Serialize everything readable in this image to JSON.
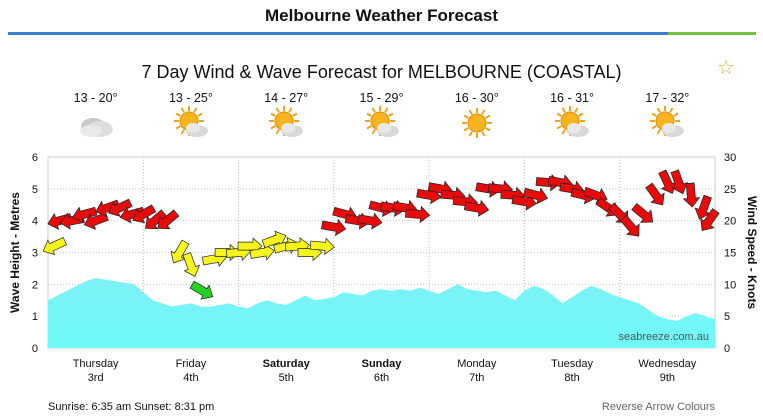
{
  "header": {
    "title": "Melbourne Weather Forecast"
  },
  "chart_data": {
    "type": "area",
    "title": "7 Day Wind & Wave Forecast for MELBOURNE (COASTAL)",
    "ylabel_left": "Wave Height - Metres",
    "ylabel_right": "Wind Speed - Knots",
    "ylim_left": [
      0,
      6
    ],
    "ylim_right": [
      0,
      30
    ],
    "yticks_left": [
      "0",
      "1",
      "2",
      "3",
      "4",
      "5",
      "6"
    ],
    "yticks_right": [
      "0",
      "5",
      "10",
      "15",
      "20",
      "25",
      "30"
    ],
    "grid": "dotted",
    "watermark": "seabreeze.com.au",
    "days": [
      {
        "name": "Thursday",
        "date": "3rd",
        "bold": false,
        "temp": "13 - 20°",
        "icon": "cloudy"
      },
      {
        "name": "Friday",
        "date": "4th",
        "bold": false,
        "temp": "13 - 25°",
        "icon": "partly-cloudy"
      },
      {
        "name": "Saturday",
        "date": "5th",
        "bold": true,
        "temp": "14 - 27°",
        "icon": "partly-cloudy"
      },
      {
        "name": "Sunday",
        "date": "6th",
        "bold": true,
        "temp": "15 - 29°",
        "icon": "partly-cloudy"
      },
      {
        "name": "Monday",
        "date": "7th",
        "bold": false,
        "temp": "16 - 30°",
        "icon": "sunny"
      },
      {
        "name": "Tuesday",
        "date": "8th",
        "bold": false,
        "temp": "16 - 31°",
        "icon": "partly-cloudy"
      },
      {
        "name": "Wednesday",
        "date": "9th",
        "bold": false,
        "temp": "17 - 32°",
        "icon": "partly-cloudy"
      }
    ],
    "wave_height_series": {
      "name": "Wave Height",
      "x": [
        0,
        0.1,
        0.2,
        0.3,
        0.4,
        0.5,
        0.6,
        0.7,
        0.8,
        0.9,
        1.0,
        1.1,
        1.2,
        1.3,
        1.4,
        1.5,
        1.6,
        1.7,
        1.8,
        1.9,
        2.0,
        2.1,
        2.2,
        2.3,
        2.4,
        2.5,
        2.6,
        2.7,
        2.8,
        2.9,
        3.0,
        3.1,
        3.2,
        3.3,
        3.4,
        3.5,
        3.6,
        3.7,
        3.8,
        3.9,
        4.0,
        4.1,
        4.2,
        4.3,
        4.4,
        4.5,
        4.6,
        4.7,
        4.8,
        4.9,
        5.0,
        5.1,
        5.2,
        5.3,
        5.4,
        5.5,
        5.6,
        5.7,
        5.8,
        5.9,
        6.0,
        6.1,
        6.2,
        6.3,
        6.4,
        6.5,
        6.6,
        6.7,
        6.8,
        6.9,
        7.0
      ],
      "values": [
        1.5,
        1.65,
        1.8,
        1.95,
        2.1,
        2.2,
        2.15,
        2.1,
        2.05,
        2.0,
        1.75,
        1.5,
        1.4,
        1.3,
        1.35,
        1.4,
        1.3,
        1.3,
        1.35,
        1.4,
        1.3,
        1.25,
        1.4,
        1.5,
        1.4,
        1.35,
        1.5,
        1.65,
        1.5,
        1.55,
        1.6,
        1.75,
        1.7,
        1.65,
        1.8,
        1.85,
        1.8,
        1.85,
        1.8,
        1.9,
        1.8,
        1.7,
        1.85,
        2.0,
        1.85,
        1.8,
        1.75,
        1.8,
        1.65,
        1.5,
        1.8,
        1.95,
        1.85,
        1.65,
        1.4,
        1.6,
        1.8,
        1.95,
        1.85,
        1.7,
        1.6,
        1.5,
        1.4,
        1.2,
        1.0,
        0.9,
        0.85,
        1.0,
        1.1,
        1.0,
        0.9
      ]
    },
    "wind_series": {
      "name": "Wind Speed",
      "x": [
        0,
        0.12,
        0.25,
        0.38,
        0.5,
        0.62,
        0.75,
        0.88,
        1.0,
        1.12,
        1.25,
        1.38,
        1.5,
        1.62,
        1.75,
        1.88,
        2.0,
        2.12,
        2.25,
        2.38,
        2.5,
        2.62,
        2.75,
        2.88,
        3.0,
        3.12,
        3.25,
        3.38,
        3.5,
        3.62,
        3.75,
        3.88,
        4.0,
        4.12,
        4.25,
        4.38,
        4.5,
        4.62,
        4.75,
        4.88,
        5.0,
        5.12,
        5.25,
        5.38,
        5.5,
        5.62,
        5.75,
        5.88,
        6.0,
        6.12,
        6.25,
        6.38,
        6.5,
        6.62,
        6.75,
        6.88,
        7.0
      ],
      "knots": [
        16,
        20,
        20,
        21,
        20,
        22,
        22,
        21,
        21,
        20,
        20,
        15,
        13,
        9,
        14,
        15,
        15,
        16,
        15,
        17,
        16,
        16,
        15,
        16,
        19,
        21,
        20,
        20,
        22,
        22,
        22,
        21,
        24,
        25,
        24,
        23,
        22,
        25,
        25,
        24,
        23,
        24,
        26,
        26,
        25,
        24,
        24,
        22,
        21,
        19,
        21,
        24,
        26,
        26,
        24,
        22,
        20
      ],
      "direction_deg": [
        245,
        255,
        260,
        255,
        250,
        250,
        245,
        255,
        240,
        230,
        230,
        210,
        160,
        120,
        80,
        90,
        85,
        90,
        80,
        70,
        75,
        85,
        90,
        95,
        100,
        105,
        100,
        100,
        105,
        100,
        100,
        95,
        100,
        100,
        95,
        95,
        100,
        100,
        95,
        95,
        100,
        105,
        95,
        100,
        100,
        105,
        110,
        125,
        135,
        140,
        130,
        145,
        155,
        160,
        175,
        200,
        215
      ]
    }
  },
  "footer": {
    "sun_times": "Sunrise: 6:35 am   Sunset: 8:31 pm",
    "reverse_arrows": "Reverse Arrow Colours"
  }
}
